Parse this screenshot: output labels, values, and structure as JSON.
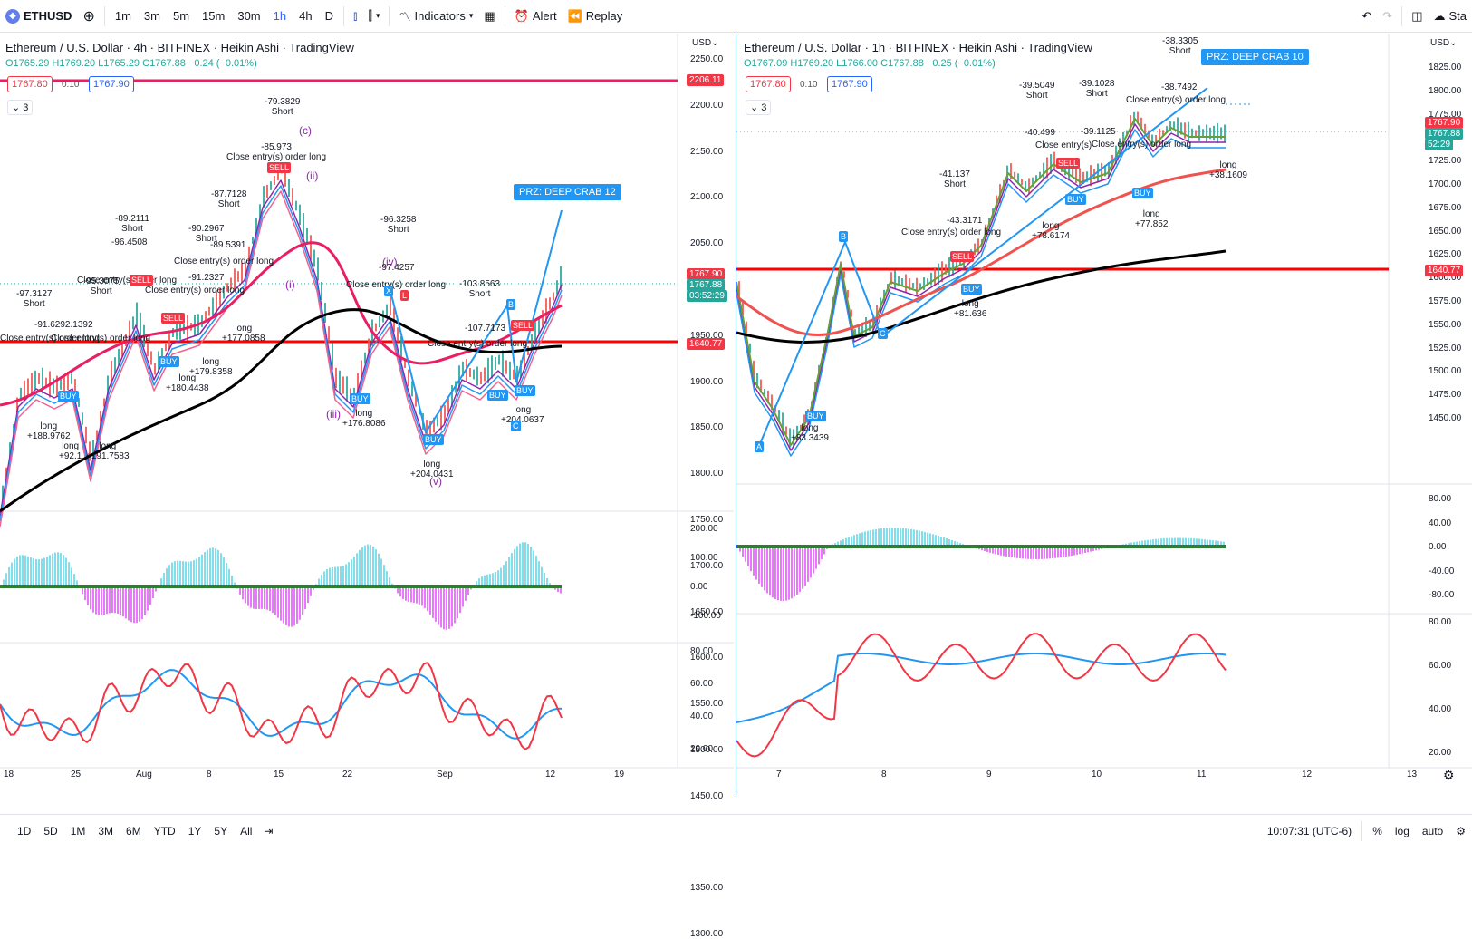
{
  "toolbar": {
    "symbol": "ETHUSD",
    "intervals": [
      "1m",
      "3m",
      "5m",
      "15m",
      "30m",
      "1h",
      "4h",
      "D"
    ],
    "active_interval": "1h",
    "indicators": "Indicators",
    "alert": "Alert",
    "replay": "Replay",
    "right_label": "Sta"
  },
  "left": {
    "title": "Ethereum / U.S. Dollar · 4h · BITFINEX · Heikin Ashi · TradingView",
    "ohlc": {
      "o": "O1765.29",
      "h": "H1769.20",
      "l": "L1765.29",
      "c": "C1767.88",
      "chg": "−0.24 (−0.01%)"
    },
    "bid": "1767.80",
    "step": "0.10",
    "ask": "1767.90",
    "collapse": "3",
    "currency": "USD",
    "price_ticks": [
      "2250.00",
      "2200.00",
      "2150.00",
      "2100.00",
      "2050.00",
      "2000.00",
      "1950.00",
      "1900.00",
      "1850.00",
      "1800.00",
      "1750.00",
      "1700.00",
      "1650.00",
      "1600.00",
      "1550.00",
      "1500.00",
      "1450.00",
      "1400.00",
      "1350.00",
      "1300.00"
    ],
    "osc_ticks": [
      "200.00",
      "100.00",
      "0.00",
      "-100.00"
    ],
    "rsi_ticks": [
      "80.00",
      "60.00",
      "40.00",
      "20.00"
    ],
    "time_ticks": [
      "18",
      "25",
      "Aug",
      "8",
      "15",
      "22",
      "Sep",
      "12",
      "19"
    ],
    "tag_top": "2206.11",
    "tag_price": "1767.90",
    "tag_price2": "1767.88",
    "tag_countdown": "03:52:29",
    "tag_red": "1640.77",
    "prz": "PRZ: DEEP CRAB 12",
    "annotations": [
      {
        "t": "-79.3829\nShort"
      },
      {
        "t": "(c)"
      },
      {
        "t": "-85.973\nClose entry(s) order long"
      },
      {
        "t": "(ii)"
      },
      {
        "t": "-87.7128\nShort"
      },
      {
        "t": "-89.2111\nShort"
      },
      {
        "t": "-90.2967\nShort"
      },
      {
        "t": "-96.4508"
      },
      {
        "t": "-89.5391"
      },
      {
        "t": "Close entry(s) order long"
      },
      {
        "t": "-91.2327"
      },
      {
        "t": "Close entry(s) order long"
      },
      {
        "t": "Close entry(s) order long"
      },
      {
        "t": "-95.3075\nShort"
      },
      {
        "t": "-97.3127\nShort"
      },
      {
        "t": "-91.6292.1392"
      },
      {
        "t": "Close entry(s) order long"
      },
      {
        "t": "Close entry(s) order long"
      },
      {
        "t": "-96.3258\nShort"
      },
      {
        "t": "-97.4257"
      },
      {
        "t": "(iv)"
      },
      {
        "t": "Close entry(s) order long"
      },
      {
        "t": "(i)"
      },
      {
        "t": "-103.8563\nShort"
      },
      {
        "t": "-107.7173"
      },
      {
        "t": "Close entry(s) order long"
      },
      {
        "t": "long\n+179.8358"
      },
      {
        "t": "long\n+180.4438"
      },
      {
        "t": "long\n+176.8086"
      },
      {
        "t": "long\n+204.0431"
      },
      {
        "t": "long\n+204.0637"
      },
      {
        "t": "long\n+188.9762"
      },
      {
        "t": "long\n+92.1"
      },
      {
        "t": "long\n+191.7583"
      },
      {
        "t": "long\n+177.0858"
      },
      {
        "t": "(iii)"
      },
      {
        "t": "(v)"
      }
    ],
    "labels": {
      "sell": "SELL",
      "buy": "BUY",
      "x": "X",
      "b": "B",
      "c": "C",
      "lshort": "L"
    }
  },
  "right": {
    "title": "Ethereum / U.S. Dollar · 1h · BITFINEX · Heikin Ashi · TradingView",
    "ohlc": {
      "o": "O1767.09",
      "h": "H1769.20",
      "l": "L1766.00",
      "c": "C1767.88",
      "chg": "−0.25 (−0.01%)"
    },
    "bid": "1767.80",
    "step": "0.10",
    "ask": "1767.90",
    "collapse": "3",
    "currency": "USD",
    "price_ticks": [
      "1825.00",
      "1800.00",
      "1775.00",
      "1750.00",
      "1725.00",
      "1700.00",
      "1675.00",
      "1650.00",
      "1625.00",
      "1600.00",
      "1575.00",
      "1550.00",
      "1525.00",
      "1500.00",
      "1475.00",
      "1450.00"
    ],
    "osc_ticks": [
      "80.00",
      "40.00",
      "0.00",
      "-40.00",
      "-80.00"
    ],
    "rsi_ticks": [
      "80.00",
      "60.00",
      "40.00",
      "20.00"
    ],
    "time_ticks": [
      "7",
      "8",
      "9",
      "10",
      "11",
      "12",
      "13"
    ],
    "tag_price": "1767.90",
    "tag_price2": "1767.88",
    "tag_countdown": "52:29",
    "tag_red": "1640.77",
    "prz": "PRZ: DEEP CRAB 10",
    "annotations": [
      {
        "t": "-38.3305\nShort"
      },
      {
        "t": "-39.5049\nShort"
      },
      {
        "t": "-39.1028\nShort"
      },
      {
        "t": "-38.7492"
      },
      {
        "t": "Close entry(s) order long"
      },
      {
        "t": "-40.499"
      },
      {
        "t": "-39.1125"
      },
      {
        "t": "Close entry(s)"
      },
      {
        "t": "Close entry(s) order long"
      },
      {
        "t": "-41.137\nShort"
      },
      {
        "t": "-43.3171"
      },
      {
        "t": "Close entry(s) order long"
      },
      {
        "t": "long\n+38.1609"
      },
      {
        "t": "long\n+77.852"
      },
      {
        "t": "long\n+78.6174"
      },
      {
        "t": "long\n+81.636"
      },
      {
        "t": "long\n+83.3439"
      }
    ],
    "labels": {
      "sell": "SELL",
      "buy": "BUY",
      "a": "A",
      "b": "B",
      "c": "C"
    }
  },
  "bottom": {
    "ranges": [
      "1D",
      "5D",
      "1M",
      "3M",
      "6M",
      "YTD",
      "1Y",
      "5Y",
      "All"
    ],
    "time": "10:07:31 (UTC-6)",
    "pct": "%",
    "log": "log",
    "auto": "auto"
  },
  "colors": {
    "accent": "#2962ff",
    "red": "#f23645",
    "green": "#26a69a",
    "blue": "#2196f3",
    "black": "#000000"
  }
}
